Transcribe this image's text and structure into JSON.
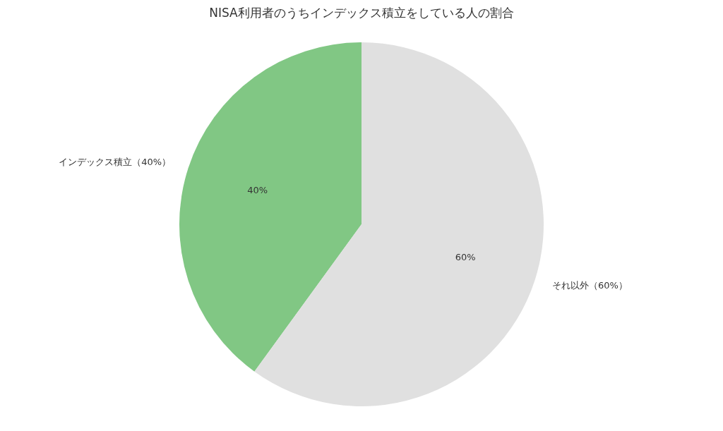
{
  "chart_data": {
    "type": "pie",
    "title": "NISA利用者のうちインデックス積立をしている人の割合",
    "categories": [
      "インデックス積立（40%）",
      "それ以外（60%）"
    ],
    "values": [
      40,
      60
    ],
    "value_labels": [
      "40%",
      "60%"
    ],
    "colors": [
      "#81c784",
      "#e0e0e0"
    ]
  }
}
